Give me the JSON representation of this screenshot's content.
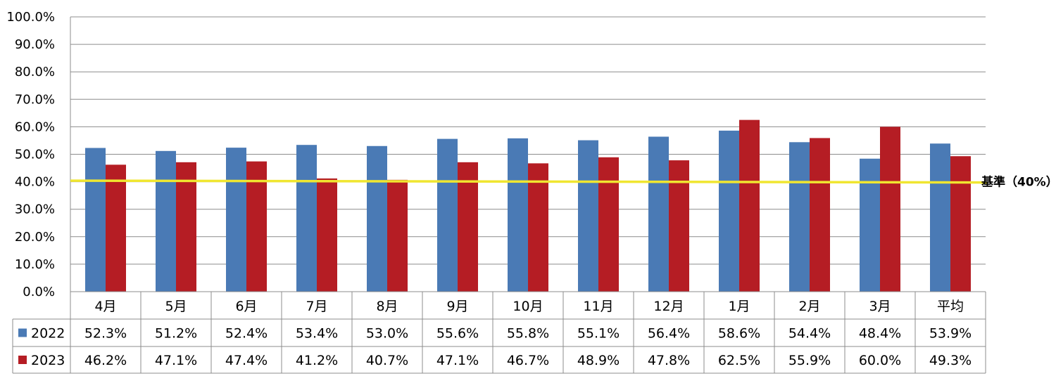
{
  "chart_data": {
    "type": "bar",
    "categories": [
      "4月",
      "5月",
      "6月",
      "7月",
      "8月",
      "9月",
      "10月",
      "11月",
      "12月",
      "1月",
      "2月",
      "3月",
      "平均"
    ],
    "series": [
      {
        "name": "2022",
        "color": "#4a7ab5",
        "values": [
          52.3,
          51.2,
          52.4,
          53.4,
          53.0,
          55.6,
          55.8,
          55.1,
          56.4,
          58.6,
          54.4,
          48.4,
          53.9
        ],
        "labels": [
          "52.3%",
          "51.2%",
          "52.4%",
          "53.4%",
          "53.0%",
          "55.6%",
          "55.8%",
          "55.1%",
          "56.4%",
          "58.6%",
          "54.4%",
          "48.4%",
          "53.9%"
        ]
      },
      {
        "name": "2023",
        "color": "#b51d24",
        "values": [
          46.2,
          47.1,
          47.4,
          41.2,
          40.7,
          47.1,
          46.7,
          48.9,
          47.8,
          62.5,
          55.9,
          60.0,
          49.3
        ],
        "labels": [
          "46.2%",
          "47.1%",
          "47.4%",
          "41.2%",
          "40.7%",
          "47.1%",
          "46.7%",
          "48.9%",
          "47.8%",
          "62.5%",
          "55.9%",
          "60.0%",
          "49.3%"
        ]
      }
    ],
    "ylim": [
      0,
      100
    ],
    "yticks": [
      "0.0%",
      "10.0%",
      "20.0%",
      "30.0%",
      "40.0%",
      "50.0%",
      "60.0%",
      "70.0%",
      "80.0%",
      "90.0%",
      "100.0%"
    ],
    "grid": true,
    "legend": "data-table",
    "reference_line": {
      "value": 40,
      "label": "基準（40%）",
      "color": "#f0e630"
    }
  }
}
